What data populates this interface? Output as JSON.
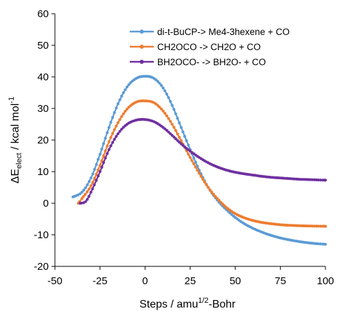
{
  "chart_data": {
    "type": "line",
    "xlabel": "Steps  /  amu1/2-Bohr",
    "xlabel_parts": {
      "main": "Steps  /  amu",
      "sup": "1/2",
      "tail": "-Bohr"
    },
    "ylabel": "ΔEelect  /  kcal mol-1",
    "ylabel_parts": {
      "delta": "ΔE",
      "sub": "elect",
      "mid": "  /  kcal mol",
      "sup": "-1"
    },
    "xlim": [
      -50,
      100
    ],
    "ylim": [
      -20,
      60
    ],
    "xticks": [
      "-50",
      "-25",
      "0",
      "25",
      "50",
      "75",
      "100"
    ],
    "yticks": [
      "-20",
      "-10",
      "0",
      "10",
      "20",
      "30",
      "40",
      "50",
      "60"
    ],
    "grid": false,
    "legend_position": "top-right",
    "series": [
      {
        "name": "di-t-BuCP-> Me4-3hexene + CO",
        "color": "#5b9bd5",
        "points": [
          [
            -40,
            2.0
          ],
          [
            -35,
            3.5
          ],
          [
            -30,
            8.0
          ],
          [
            -25,
            15.5
          ],
          [
            -20,
            24.0
          ],
          [
            -15,
            31.5
          ],
          [
            -10,
            36.8
          ],
          [
            -5,
            39.5
          ],
          [
            0,
            40.2
          ],
          [
            5,
            39.5
          ],
          [
            10,
            36.5
          ],
          [
            15,
            31.0
          ],
          [
            20,
            24.0
          ],
          [
            25,
            17.0
          ],
          [
            30,
            10.5
          ],
          [
            35,
            5.0
          ],
          [
            40,
            1.0
          ],
          [
            45,
            -2.0
          ],
          [
            50,
            -4.5
          ],
          [
            55,
            -6.5
          ],
          [
            60,
            -8.0
          ],
          [
            65,
            -9.2
          ],
          [
            70,
            -10.2
          ],
          [
            75,
            -11.0
          ],
          [
            80,
            -11.6
          ],
          [
            85,
            -12.1
          ],
          [
            90,
            -12.5
          ],
          [
            95,
            -12.8
          ],
          [
            100,
            -13.0
          ]
        ]
      },
      {
        "name": "CH2OCO  ->  CH2O +  CO",
        "color": "#ed7d31",
        "points": [
          [
            -37,
            0.0
          ],
          [
            -35,
            1.5
          ],
          [
            -30,
            5.5
          ],
          [
            -25,
            12.0
          ],
          [
            -20,
            19.5
          ],
          [
            -15,
            25.5
          ],
          [
            -10,
            29.8
          ],
          [
            -5,
            32.0
          ],
          [
            0,
            32.4
          ],
          [
            5,
            31.8
          ],
          [
            10,
            29.2
          ],
          [
            15,
            25.0
          ],
          [
            20,
            19.8
          ],
          [
            25,
            14.5
          ],
          [
            30,
            9.5
          ],
          [
            35,
            5.0
          ],
          [
            40,
            1.5
          ],
          [
            45,
            -1.3
          ],
          [
            50,
            -3.3
          ],
          [
            55,
            -4.6
          ],
          [
            60,
            -5.5
          ],
          [
            65,
            -6.1
          ],
          [
            70,
            -6.5
          ],
          [
            75,
            -6.8
          ],
          [
            80,
            -7.0
          ],
          [
            85,
            -7.1
          ],
          [
            90,
            -7.2
          ],
          [
            95,
            -7.25
          ],
          [
            100,
            -7.3
          ]
        ]
      },
      {
        "name": "BH2OCO-  ->  BH2O- + CO",
        "color": "#7030a0",
        "points": [
          [
            -36,
            0.0
          ],
          [
            -33,
            0.5
          ],
          [
            -30,
            3.5
          ],
          [
            -25,
            10.0
          ],
          [
            -20,
            17.0
          ],
          [
            -15,
            22.0
          ],
          [
            -10,
            25.0
          ],
          [
            -5,
            26.3
          ],
          [
            0,
            26.5
          ],
          [
            5,
            25.8
          ],
          [
            10,
            24.0
          ],
          [
            15,
            21.5
          ],
          [
            20,
            18.8
          ],
          [
            25,
            16.5
          ],
          [
            30,
            14.5
          ],
          [
            35,
            12.8
          ],
          [
            40,
            11.5
          ],
          [
            45,
            10.5
          ],
          [
            50,
            9.8
          ],
          [
            55,
            9.3
          ],
          [
            60,
            8.9
          ],
          [
            65,
            8.5
          ],
          [
            70,
            8.2
          ],
          [
            75,
            8.0
          ],
          [
            80,
            7.8
          ],
          [
            85,
            7.6
          ],
          [
            90,
            7.5
          ],
          [
            95,
            7.4
          ],
          [
            100,
            7.3
          ]
        ]
      }
    ]
  }
}
